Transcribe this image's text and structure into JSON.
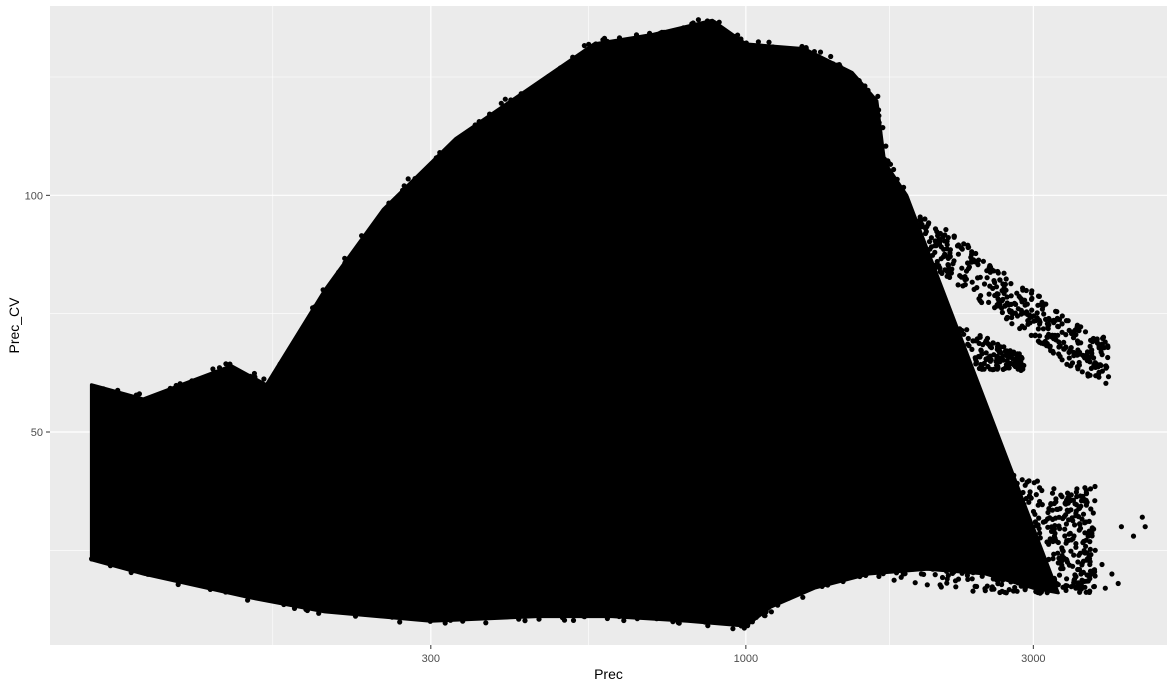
{
  "chart_data": {
    "type": "scatter",
    "title": "",
    "xlabel": "Prec",
    "ylabel": "Prec_CV",
    "x_scale": "log10",
    "xlim": [
      70,
      5000
    ],
    "ylim": [
      5,
      140
    ],
    "x_ticks": [
      300,
      1000,
      3000
    ],
    "x_tick_labels": [
      "300",
      "1000",
      "3000"
    ],
    "y_ticks": [
      50,
      100
    ],
    "y_tick_labels": [
      "50",
      "100"
    ],
    "x_minor_ticks": [
      164,
      548,
      1732
    ],
    "y_minor_ticks": [
      25,
      75,
      125
    ],
    "grid": true,
    "legend": "none",
    "panel_background": "#EBEBEB",
    "grid_color": "#FFFFFF",
    "point_color": "#000000",
    "series": [
      {
        "upper_envelope": [
          [
            82,
            60
          ],
          [
            100,
            57
          ],
          [
            140,
            64
          ],
          [
            160,
            60
          ],
          [
            200,
            80
          ],
          [
            250,
            97
          ],
          [
            330,
            112
          ],
          [
            430,
            122
          ],
          [
            560,
            132
          ],
          [
            700,
            134
          ],
          [
            880,
            137
          ],
          [
            1000,
            132
          ],
          [
            1250,
            131
          ],
          [
            1500,
            126
          ],
          [
            1650,
            120
          ],
          [
            1700,
            107
          ],
          [
            1850,
            100
          ]
        ],
        "lower_envelope": [
          [
            82,
            23
          ],
          [
            100,
            20
          ],
          [
            150,
            15
          ],
          [
            200,
            12
          ],
          [
            300,
            10
          ],
          [
            450,
            11
          ],
          [
            600,
            11
          ],
          [
            800,
            10
          ],
          [
            1000,
            9
          ],
          [
            1100,
            13
          ],
          [
            1300,
            17
          ],
          [
            1600,
            20
          ],
          [
            2000,
            21
          ],
          [
            2500,
            20
          ],
          [
            3000,
            17
          ],
          [
            3300,
            16
          ]
        ],
        "upper_tail": [
          [
            1900,
            97
          ],
          [
            2200,
            92
          ],
          [
            2600,
            85
          ],
          [
            3000,
            80
          ],
          [
            3500,
            73
          ],
          [
            4000,
            70
          ]
        ],
        "middle_tail_upper": [
          [
            1250,
            84
          ],
          [
            1600,
            80
          ],
          [
            2000,
            75
          ],
          [
            2500,
            70
          ],
          [
            2900,
            66
          ]
        ],
        "middle_tail_lower": [
          [
            1150,
            72
          ],
          [
            1500,
            67
          ],
          [
            1900,
            64
          ],
          [
            2400,
            63
          ],
          [
            2900,
            63
          ]
        ],
        "notch_tip": [
          1150,
          58
        ],
        "lower_tail_upper": [
          [
            1150,
            53
          ],
          [
            1400,
            50
          ],
          [
            1700,
            47
          ],
          [
            2100,
            44
          ],
          [
            2600,
            42
          ],
          [
            3000,
            40
          ],
          [
            3400,
            37
          ],
          [
            3800,
            40
          ]
        ],
        "scattered_points": [
          [
            4200,
            30
          ],
          [
            4400,
            28
          ],
          [
            4550,
            32
          ],
          [
            4600,
            30
          ],
          [
            3900,
            22
          ],
          [
            4050,
            20
          ],
          [
            4150,
            18
          ],
          [
            3950,
            17
          ],
          [
            3800,
            25
          ],
          [
            3700,
            28
          ],
          [
            3500,
            24
          ],
          [
            3600,
            20
          ]
        ]
      }
    ]
  }
}
